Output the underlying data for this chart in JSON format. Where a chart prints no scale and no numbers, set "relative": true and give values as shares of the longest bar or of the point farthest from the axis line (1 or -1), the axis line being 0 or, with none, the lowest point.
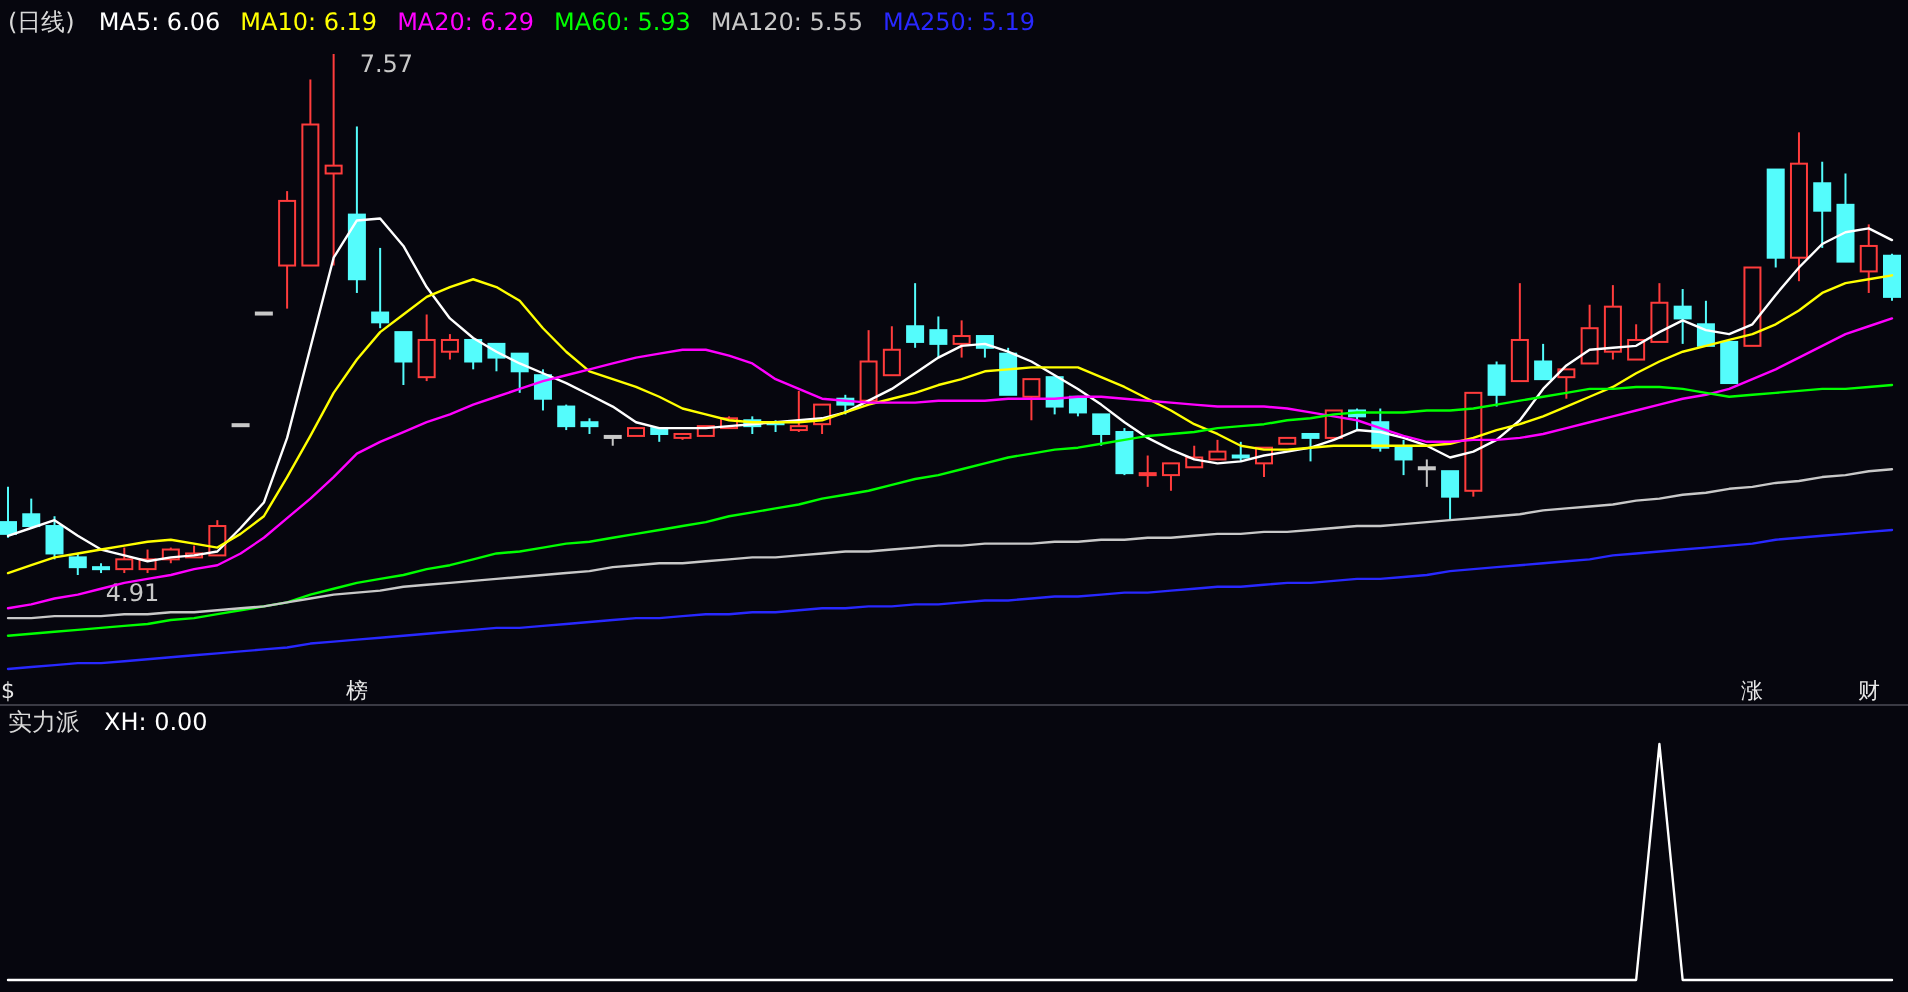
{
  "chart_data": [
    {
      "type": "candlestick",
      "title": "(日线)",
      "legend": "top left",
      "tick_labels": "x",
      "categories": [
        "$",
        null,
        null,
        null,
        null,
        null,
        null,
        null,
        null,
        null,
        null,
        null,
        null,
        null,
        null,
        "榜",
        null,
        null,
        null,
        null,
        null,
        null,
        null,
        null,
        null,
        null,
        null,
        null,
        null,
        null,
        null,
        null,
        null,
        null,
        null,
        null,
        null,
        null,
        null,
        null,
        null,
        null,
        null,
        null,
        null,
        null,
        null,
        null,
        null,
        null,
        null,
        null,
        null,
        null,
        null,
        null,
        null,
        null,
        null,
        null,
        null,
        null,
        null,
        null,
        null,
        null,
        null,
        null,
        null,
        null,
        null,
        null,
        null,
        null,
        null,
        "涨",
        null,
        null,
        null,
        null,
        "财",
        null
      ],
      "ohlc": [
        [
          5.18,
          5.36,
          5.1,
          5.12
        ],
        [
          5.22,
          5.3,
          5.16,
          5.16
        ],
        [
          5.16,
          5.21,
          4.99,
          5.02
        ],
        [
          5.0,
          5.02,
          4.91,
          4.95
        ],
        [
          4.95,
          4.97,
          4.92,
          4.94
        ],
        [
          4.94,
          5.05,
          4.92,
          4.99
        ],
        [
          4.94,
          5.04,
          4.92,
          4.99
        ],
        [
          4.99,
          5.05,
          4.97,
          5.04
        ],
        [
          5.0,
          5.06,
          5.0,
          5.02
        ],
        [
          5.01,
          5.19,
          5.01,
          5.16
        ],
        [
          5.68,
          5.68,
          5.68,
          5.68
        ],
        [
          6.25,
          6.25,
          6.25,
          6.25
        ],
        [
          6.49,
          6.87,
          6.27,
          6.82
        ],
        [
          6.49,
          7.44,
          6.49,
          7.21
        ],
        [
          6.96,
          7.57,
          6.49,
          7.0
        ],
        [
          6.75,
          7.2,
          6.35,
          6.42
        ],
        [
          6.25,
          6.58,
          6.17,
          6.2
        ],
        [
          6.15,
          6.15,
          5.88,
          6.0
        ],
        [
          5.92,
          6.24,
          5.9,
          6.11
        ],
        [
          6.05,
          6.14,
          6.01,
          6.11
        ],
        [
          6.11,
          6.11,
          5.96,
          6.0
        ],
        [
          6.09,
          6.09,
          5.95,
          6.02
        ],
        [
          6.04,
          6.04,
          5.84,
          5.95
        ],
        [
          5.93,
          5.96,
          5.75,
          5.81
        ],
        [
          5.77,
          5.78,
          5.65,
          5.67
        ],
        [
          5.69,
          5.71,
          5.63,
          5.67
        ],
        [
          5.62,
          5.62,
          5.57,
          5.62
        ],
        [
          5.62,
          5.66,
          5.62,
          5.66
        ],
        [
          5.66,
          5.66,
          5.59,
          5.63
        ],
        [
          5.61,
          5.63,
          5.6,
          5.63
        ],
        [
          5.62,
          5.67,
          5.62,
          5.67
        ],
        [
          5.66,
          5.72,
          5.66,
          5.71
        ],
        [
          5.7,
          5.72,
          5.63,
          5.67
        ],
        [
          5.69,
          5.7,
          5.64,
          5.68
        ],
        [
          5.65,
          5.85,
          5.64,
          5.67
        ],
        [
          5.68,
          5.78,
          5.63,
          5.78
        ],
        [
          5.81,
          5.83,
          5.73,
          5.78
        ],
        [
          5.8,
          6.16,
          5.8,
          6.0
        ],
        [
          5.93,
          6.18,
          5.93,
          6.06
        ],
        [
          6.18,
          6.4,
          6.07,
          6.1
        ],
        [
          6.16,
          6.23,
          6.02,
          6.09
        ],
        [
          6.09,
          6.21,
          6.02,
          6.13
        ],
        [
          6.13,
          6.13,
          6.02,
          6.07
        ],
        [
          6.04,
          6.07,
          5.83,
          5.83
        ],
        [
          5.82,
          5.91,
          5.7,
          5.91
        ],
        [
          5.92,
          5.92,
          5.73,
          5.77
        ],
        [
          5.82,
          5.82,
          5.72,
          5.74
        ],
        [
          5.73,
          5.73,
          5.57,
          5.63
        ],
        [
          5.64,
          5.66,
          5.42,
          5.43
        ],
        [
          5.42,
          5.52,
          5.36,
          5.43
        ],
        [
          5.42,
          5.48,
          5.34,
          5.48
        ],
        [
          5.46,
          5.57,
          5.46,
          5.51
        ],
        [
          5.5,
          5.6,
          5.5,
          5.54
        ],
        [
          5.52,
          5.59,
          5.49,
          5.51
        ],
        [
          5.48,
          5.56,
          5.41,
          5.56
        ],
        [
          5.58,
          5.61,
          5.58,
          5.61
        ],
        [
          5.63,
          5.63,
          5.49,
          5.61
        ],
        [
          5.61,
          5.75,
          5.61,
          5.75
        ],
        [
          5.75,
          5.76,
          5.65,
          5.72
        ],
        [
          5.69,
          5.76,
          5.54,
          5.56
        ],
        [
          5.56,
          5.6,
          5.42,
          5.5
        ],
        [
          5.46,
          5.5,
          5.36,
          5.46
        ],
        [
          5.44,
          5.44,
          5.19,
          5.31
        ],
        [
          5.34,
          5.84,
          5.31,
          5.84
        ],
        [
          5.98,
          6.0,
          5.77,
          5.83
        ],
        [
          5.9,
          6.4,
          5.9,
          6.11
        ],
        [
          6.0,
          6.09,
          5.91,
          5.91
        ],
        [
          5.92,
          5.96,
          5.81,
          5.96
        ],
        [
          5.99,
          6.29,
          5.99,
          6.17
        ],
        [
          6.05,
          6.39,
          6.01,
          6.28
        ],
        [
          6.01,
          6.19,
          6.01,
          6.11
        ],
        [
          6.1,
          6.4,
          6.1,
          6.3
        ],
        [
          6.28,
          6.37,
          6.09,
          6.22
        ],
        [
          6.19,
          6.31,
          6.08,
          6.08
        ],
        [
          6.1,
          6.1,
          5.89,
          5.89
        ],
        [
          6.08,
          6.48,
          6.08,
          6.48
        ],
        [
          6.98,
          6.98,
          6.48,
          6.53
        ],
        [
          6.53,
          7.17,
          6.41,
          7.01
        ],
        [
          6.91,
          7.02,
          6.58,
          6.77
        ],
        [
          6.8,
          6.96,
          6.51,
          6.51
        ],
        [
          6.46,
          6.7,
          6.35,
          6.59
        ],
        [
          6.54,
          6.55,
          6.31,
          6.33
        ]
      ],
      "colors": [
        "#54fcfc",
        "#54fcfc",
        "#54fcfc",
        "#54fcfc",
        "#54fcfc",
        "#ff3c3c",
        "#ff3c3c",
        "#ff3c3c",
        "#ff3c3c",
        "#ff3c3c",
        "#c8c8c8",
        "#c8c8c8",
        "#ff3c3c",
        "#ff3c3c",
        "#ff3c3c",
        "#54fcfc",
        "#54fcfc",
        "#54fcfc",
        "#ff3c3c",
        "#ff3c3c",
        "#54fcfc",
        "#54fcfc",
        "#54fcfc",
        "#54fcfc",
        "#54fcfc",
        "#54fcfc",
        "#c8c8c8",
        "#ff3c3c",
        "#54fcfc",
        "#ff3c3c",
        "#ff3c3c",
        "#ff3c3c",
        "#54fcfc",
        "#54fcfc",
        "#ff3c3c",
        "#ff3c3c",
        "#54fcfc",
        "#ff3c3c",
        "#ff3c3c",
        "#54fcfc",
        "#54fcfc",
        "#ff3c3c",
        "#54fcfc",
        "#54fcfc",
        "#ff3c3c",
        "#54fcfc",
        "#54fcfc",
        "#54fcfc",
        "#54fcfc",
        "#ff3c3c",
        "#ff3c3c",
        "#ff3c3c",
        "#ff3c3c",
        "#54fcfc",
        "#ff3c3c",
        "#ff3c3c",
        "#54fcfc",
        "#ff3c3c",
        "#54fcfc",
        "#54fcfc",
        "#54fcfc",
        "#c8c8c8",
        "#54fcfc",
        "#ff3c3c",
        "#54fcfc",
        "#ff3c3c",
        "#54fcfc",
        "#ff3c3c",
        "#ff3c3c",
        "#ff3c3c",
        "#ff3c3c",
        "#ff3c3c",
        "#54fcfc",
        "#54fcfc",
        "#54fcfc",
        "#ff3c3c",
        "#54fcfc",
        "#ff3c3c",
        "#54fcfc",
        "#54fcfc",
        "#ff3c3c",
        "#54fcfc"
      ],
      "annotations": [
        "7.57",
        "4.91"
      ],
      "series": [
        {
          "type": "line",
          "name": "MA5: 6.06",
          "color": "#ffffff",
          "values": [
            5.11,
            5.15,
            5.19,
            5.11,
            5.04,
            5.01,
            4.98,
            5.0,
            5.01,
            5.03,
            5.15,
            5.28,
            5.61,
            6.07,
            6.53,
            6.72,
            6.73,
            6.59,
            6.38,
            6.22,
            6.12,
            6.05,
            5.99,
            5.94,
            5.89,
            5.83,
            5.77,
            5.69,
            5.66,
            5.66,
            5.66,
            5.67,
            5.68,
            5.69,
            5.7,
            5.71,
            5.74,
            5.8,
            5.86,
            5.94,
            6.02,
            6.08,
            6.09,
            6.05,
            6.0,
            5.93,
            5.86,
            5.78,
            5.69,
            5.61,
            5.55,
            5.5,
            5.48,
            5.49,
            5.52,
            5.54,
            5.56,
            5.6,
            5.65,
            5.64,
            5.61,
            5.57,
            5.51,
            5.54,
            5.6,
            5.7,
            5.86,
            5.98,
            6.06,
            6.07,
            6.08,
            6.15,
            6.21,
            6.16,
            6.14,
            6.19,
            6.34,
            6.48,
            6.6,
            6.66,
            6.68,
            6.62
          ]
        },
        {
          "type": "line",
          "name": "MA10: 6.19",
          "color": "#ffff00",
          "values": [
            4.92,
            4.96,
            5.0,
            5.02,
            5.04,
            5.06,
            5.08,
            5.09,
            5.07,
            5.05,
            5.12,
            5.21,
            5.41,
            5.62,
            5.84,
            6.01,
            6.15,
            6.24,
            6.33,
            6.38,
            6.42,
            6.38,
            6.31,
            6.17,
            6.05,
            5.95,
            5.91,
            5.87,
            5.82,
            5.76,
            5.73,
            5.7,
            5.69,
            5.69,
            5.69,
            5.7,
            5.74,
            5.78,
            5.81,
            5.84,
            5.88,
            5.91,
            5.95,
            5.96,
            5.97,
            5.97,
            5.97,
            5.92,
            5.87,
            5.81,
            5.75,
            5.68,
            5.63,
            5.57,
            5.55,
            5.55,
            5.56,
            5.57,
            5.57,
            5.57,
            5.57,
            5.57,
            5.58,
            5.61,
            5.65,
            5.68,
            5.72,
            5.77,
            5.82,
            5.87,
            5.94,
            6.0,
            6.05,
            6.08,
            6.11,
            6.14,
            6.19,
            6.26,
            6.35,
            6.4,
            6.42,
            6.44
          ]
        },
        {
          "type": "line",
          "name": "MA20: 6.29",
          "color": "#ff00ff",
          "values": [
            4.74,
            4.76,
            4.79,
            4.81,
            4.84,
            4.87,
            4.89,
            4.91,
            4.94,
            4.96,
            5.02,
            5.1,
            5.2,
            5.3,
            5.41,
            5.53,
            5.59,
            5.64,
            5.69,
            5.73,
            5.78,
            5.82,
            5.86,
            5.9,
            5.93,
            5.96,
            5.99,
            6.02,
            6.04,
            6.06,
            6.06,
            6.03,
            5.99,
            5.91,
            5.86,
            5.81,
            5.8,
            5.79,
            5.79,
            5.79,
            5.8,
            5.8,
            5.8,
            5.81,
            5.81,
            5.81,
            5.82,
            5.82,
            5.81,
            5.8,
            5.79,
            5.78,
            5.77,
            5.77,
            5.77,
            5.76,
            5.74,
            5.72,
            5.7,
            5.66,
            5.62,
            5.59,
            5.59,
            5.6,
            5.6,
            5.61,
            5.63,
            5.66,
            5.69,
            5.72,
            5.75,
            5.78,
            5.81,
            5.83,
            5.86,
            5.91,
            5.96,
            6.02,
            6.08,
            6.14,
            6.18,
            6.22
          ]
        },
        {
          "type": "line",
          "name": "MA60: 5.93",
          "color": "#00ff00",
          "values": [
            4.6,
            4.61,
            4.62,
            4.63,
            4.64,
            4.65,
            4.66,
            4.68,
            4.69,
            4.71,
            4.73,
            4.75,
            4.77,
            4.81,
            4.84,
            4.87,
            4.89,
            4.91,
            4.94,
            4.96,
            4.99,
            5.02,
            5.03,
            5.05,
            5.07,
            5.08,
            5.1,
            5.12,
            5.14,
            5.16,
            5.18,
            5.21,
            5.23,
            5.25,
            5.27,
            5.3,
            5.32,
            5.34,
            5.37,
            5.4,
            5.42,
            5.45,
            5.48,
            5.51,
            5.53,
            5.55,
            5.56,
            5.58,
            5.6,
            5.62,
            5.63,
            5.64,
            5.66,
            5.67,
            5.68,
            5.7,
            5.71,
            5.73,
            5.74,
            5.74,
            5.74,
            5.75,
            5.75,
            5.76,
            5.78,
            5.8,
            5.82,
            5.84,
            5.86,
            5.86,
            5.87,
            5.87,
            5.86,
            5.84,
            5.82,
            5.83,
            5.84,
            5.85,
            5.86,
            5.86,
            5.87,
            5.88
          ]
        },
        {
          "type": "line",
          "name": "MA120: 5.55",
          "color": "#c8c8c8",
          "values": [
            4.69,
            4.69,
            4.7,
            4.7,
            4.7,
            4.71,
            4.71,
            4.72,
            4.72,
            4.73,
            4.74,
            4.75,
            4.77,
            4.79,
            4.81,
            4.82,
            4.83,
            4.85,
            4.86,
            4.87,
            4.88,
            4.89,
            4.9,
            4.91,
            4.92,
            4.93,
            4.95,
            4.96,
            4.97,
            4.97,
            4.98,
            4.99,
            5.0,
            5.0,
            5.01,
            5.02,
            5.03,
            5.03,
            5.04,
            5.05,
            5.06,
            5.06,
            5.07,
            5.07,
            5.07,
            5.08,
            5.08,
            5.09,
            5.09,
            5.1,
            5.1,
            5.11,
            5.12,
            5.12,
            5.13,
            5.13,
            5.14,
            5.15,
            5.16,
            5.16,
            5.17,
            5.18,
            5.19,
            5.2,
            5.21,
            5.22,
            5.24,
            5.25,
            5.26,
            5.27,
            5.29,
            5.3,
            5.32,
            5.33,
            5.35,
            5.36,
            5.38,
            5.39,
            5.41,
            5.42,
            5.44,
            5.45
          ]
        },
        {
          "type": "line",
          "name": "MA250: 5.19",
          "color": "#2828ff",
          "values": [
            4.43,
            4.44,
            4.45,
            4.46,
            4.46,
            4.47,
            4.48,
            4.49,
            4.5,
            4.51,
            4.52,
            4.53,
            4.54,
            4.56,
            4.57,
            4.58,
            4.59,
            4.6,
            4.61,
            4.62,
            4.63,
            4.64,
            4.64,
            4.65,
            4.66,
            4.67,
            4.68,
            4.69,
            4.69,
            4.7,
            4.71,
            4.71,
            4.72,
            4.72,
            4.73,
            4.74,
            4.74,
            4.75,
            4.75,
            4.76,
            4.76,
            4.77,
            4.78,
            4.78,
            4.79,
            4.8,
            4.8,
            4.81,
            4.82,
            4.82,
            4.83,
            4.84,
            4.85,
            4.85,
            4.86,
            4.87,
            4.87,
            4.88,
            4.89,
            4.89,
            4.9,
            4.91,
            4.93,
            4.94,
            4.95,
            4.96,
            4.97,
            4.98,
            4.99,
            5.01,
            5.02,
            5.03,
            5.04,
            5.05,
            5.06,
            5.07,
            5.09,
            5.1,
            5.11,
            5.12,
            5.13,
            5.14
          ]
        }
      ]
    },
    {
      "type": "line",
      "title": "实力派",
      "legend": "top left",
      "tick_labels": false,
      "relative": true,
      "categories": [
        null,
        null,
        null,
        null,
        null,
        null,
        null,
        null,
        null,
        null,
        null,
        null,
        null,
        null,
        null,
        null,
        null,
        null,
        null,
        null,
        null,
        null,
        null,
        null,
        null,
        null,
        null,
        null,
        null,
        null,
        null,
        null,
        null,
        null,
        null,
        null,
        null,
        null,
        null,
        null,
        null,
        null,
        null,
        null,
        null,
        null,
        null,
        null,
        null,
        null,
        null,
        null,
        null,
        null,
        null,
        null,
        null,
        null,
        null,
        null,
        null,
        null,
        null,
        null,
        null,
        null,
        null,
        null,
        null,
        null,
        null,
        null,
        null,
        null,
        null,
        null,
        null,
        null,
        null,
        null,
        null,
        null
      ],
      "series": [
        {
          "name": "XH: 0.00",
          "color": "#ffffff",
          "values": [
            0,
            0,
            0,
            0,
            0,
            0,
            0,
            0,
            0,
            0,
            0,
            0,
            0,
            0,
            0,
            0,
            0,
            0,
            0,
            0,
            0,
            0,
            0,
            0,
            0,
            0,
            0,
            0,
            0,
            0,
            0,
            0,
            0,
            0,
            0,
            0,
            0,
            0,
            0,
            0,
            0,
            0,
            0,
            0,
            0,
            0,
            0,
            0,
            0,
            0,
            0,
            0,
            0,
            0,
            0,
            0,
            0,
            0,
            0,
            0,
            0,
            0,
            0,
            0,
            0,
            0,
            0,
            0,
            0,
            0,
            0,
            1,
            0,
            0,
            0,
            0,
            0,
            0,
            0,
            0,
            0,
            0
          ]
        }
      ]
    }
  ]
}
